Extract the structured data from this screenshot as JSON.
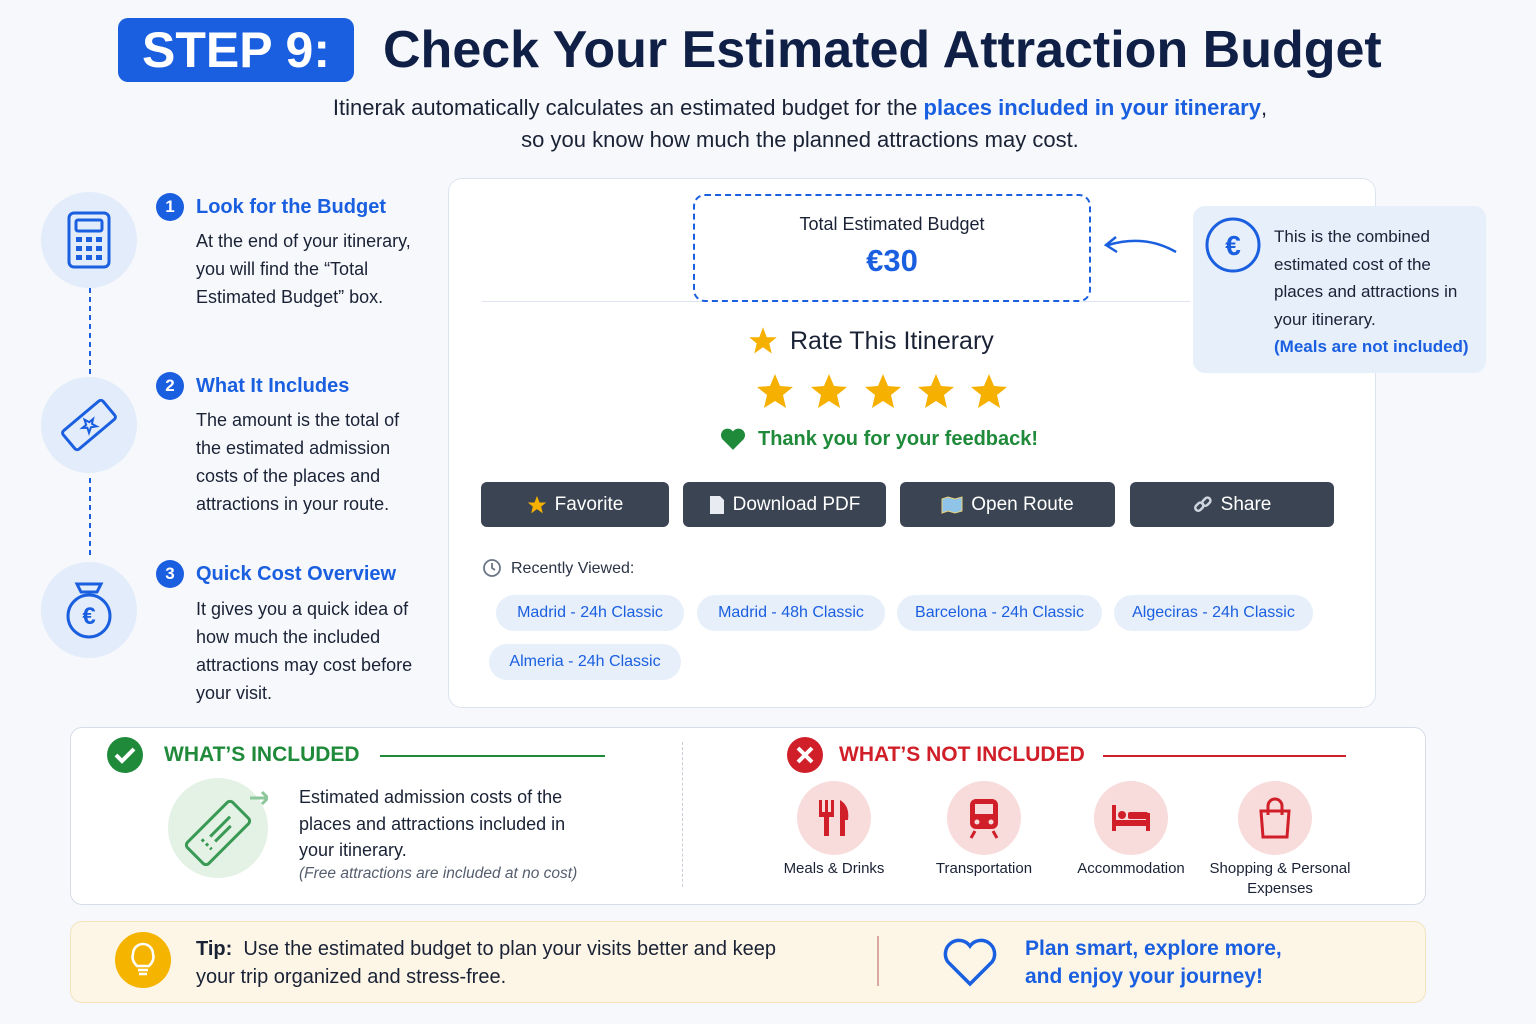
{
  "header": {
    "badge": "STEP 9:",
    "title": "Check Your Estimated Attraction Budget",
    "intro": {
      "before": "Itinerak automatically calculates an estimated budget for the",
      "highlight": "places included in your itinerary",
      "after": ",",
      "line2": "so you know how much the planned attractions may cost."
    }
  },
  "steps": [
    {
      "number": "1",
      "title": "Look for the Budget",
      "text": "At the end of your itinerary, you will find the “Total Estimated Budget” box."
    },
    {
      "number": "2",
      "title": "What It Includes",
      "text": "The amount is the total of the estimated admission costs of the places and attractions in your route."
    },
    {
      "number": "3",
      "title": "Quick Cost Overview",
      "text": "It gives you a quick idea of how much the included attractions may cost before your visit."
    }
  ],
  "budget_card": {
    "label": "Total Estimated Budget",
    "value": "€30"
  },
  "callout": {
    "text": "This is the combined estimated cost of the places and attractions in your itinerary.",
    "note": "(Meals are not included)"
  },
  "rating": {
    "title": "Rate This Itinerary",
    "feedback": "Thank you for your feedback!"
  },
  "actions": [
    "Favorite",
    "Download PDF",
    "Open Route",
    "Share"
  ],
  "recently_viewed": {
    "label": "Recently Viewed:",
    "items": [
      "Madrid - 24h Classic",
      "Madrid - 48h Classic",
      "Barcelona - 24h Classic",
      "Algeciras - 24h Classic",
      "Almeria - 24h Classic"
    ]
  },
  "included": {
    "heading": "WHAT’S INCLUDED",
    "text": "Estimated admission costs of the places and attractions included in your itinerary.",
    "note": "(Free attractions are included at no cost)"
  },
  "not_included": {
    "heading": "WHAT’S NOT INCLUDED",
    "items": [
      "Meals & Drinks",
      "Transportation",
      "Accommodation",
      "Shopping & Personal Expenses"
    ]
  },
  "tip": {
    "label": "Tip:",
    "text": "Use the estimated budget to plan your visits better and keep your trip organized and stress-free.",
    "slogan": "Plan smart, explore more, and enjoy your journey!"
  }
}
